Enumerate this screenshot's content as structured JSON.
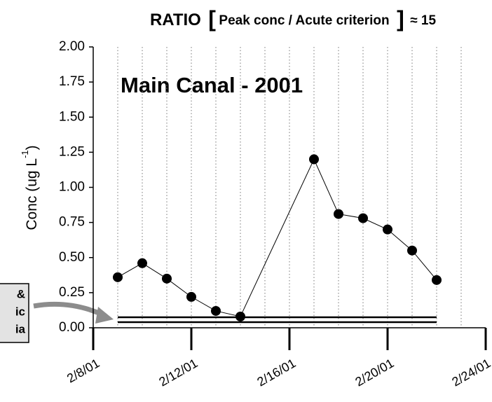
{
  "chart_data": {
    "type": "line",
    "title_parts": [
      "RATIO",
      "[",
      "Peak conc / Acute criterion",
      "]",
      "≈ 15"
    ],
    "annotation": "Main Canal - 2001",
    "y_label": "Conc (ug L",
    "y_label_sup": "-1",
    "y_label_end": ")",
    "side_note_lines": [
      "&",
      "ic",
      "ia"
    ],
    "x": [
      "2/9/01",
      "2/10/01",
      "2/11/01",
      "2/12/01",
      "2/13/01",
      "2/14/01",
      "2/17/01",
      "2/18/01",
      "2/19/01",
      "2/20/01",
      "2/21/01",
      "2/22/01"
    ],
    "series": [
      {
        "name": "Main Canal",
        "color": "#000000",
        "values": [
          0.36,
          0.46,
          0.35,
          0.22,
          0.12,
          0.08,
          1.2,
          0.81,
          0.78,
          0.7,
          0.55,
          0.34
        ]
      }
    ],
    "reference_lines": [
      {
        "value": 0.075,
        "x": [
          "2/9/01",
          "2/22/01"
        ]
      },
      {
        "value": 0.04,
        "x": [
          "2/9/01",
          "2/22/01"
        ]
      }
    ],
    "xlim": [
      "2/8/01",
      "2/24/01"
    ],
    "xticks": [
      "2/8/01",
      "2/12/01",
      "2/16/01",
      "2/20/01",
      "2/24/01"
    ],
    "xgrid": [
      "2/9/01",
      "2/10/01",
      "2/11/01",
      "2/12/01",
      "2/13/01",
      "2/14/01",
      "2/15/01",
      "2/16/01",
      "2/17/01",
      "2/18/01",
      "2/19/01",
      "2/20/01",
      "2/21/01",
      "2/22/01",
      "2/23/01"
    ],
    "ylim": [
      0,
      2
    ],
    "yticks": [
      {
        "value": 0,
        "label": "0.00"
      },
      {
        "value": 0.25,
        "label": "0.25"
      },
      {
        "value": 0.5,
        "label": "0.50"
      },
      {
        "value": 0.75,
        "label": "0.75"
      },
      {
        "value": 1,
        "label": "1.00"
      },
      {
        "value": 1.25,
        "label": "1.25"
      },
      {
        "value": 1.5,
        "label": "1.50"
      },
      {
        "value": 1.75,
        "label": "1.75"
      },
      {
        "value": 2,
        "label": "2.00"
      }
    ],
    "grid": true
  }
}
